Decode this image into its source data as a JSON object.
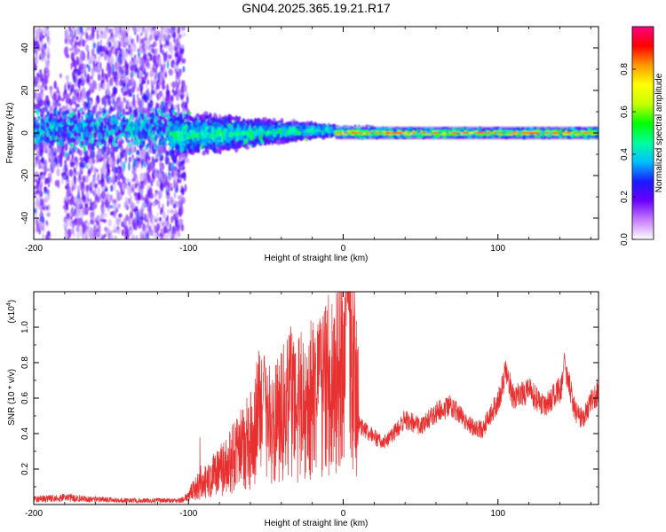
{
  "page": {
    "title": "GN04.2025.365.19.21.R17"
  },
  "chart_data": [
    {
      "type": "heatmap",
      "title": "GN04.2025.365.19.21.R17",
      "xlabel": "Height of straight line (km)",
      "ylabel": "Frequency (Hz)",
      "xlim": [
        -200,
        165
      ],
      "ylim": [
        -50,
        50
      ],
      "xticks": [
        -200,
        -100,
        0,
        100
      ],
      "yticks": [
        -40,
        -20,
        0,
        20,
        40
      ],
      "colorbar": {
        "label": "Normalized spectral amplitude",
        "range": [
          0,
          1
        ],
        "ticks": [
          "0.0",
          "0.2",
          "0.4",
          "0.6",
          "0.8"
        ],
        "colors": [
          "#ffffff",
          "#c77dff",
          "#6a00ff",
          "#1a1aff",
          "#00c0ff",
          "#00ff9c",
          "#00ff00",
          "#c8ff00",
          "#ffff00",
          "#ff9900",
          "#ff0000",
          "#ff0080"
        ]
      },
      "ridge": {
        "x": [
          -120,
          165
        ],
        "center_hz": 0
      },
      "grid": false
    },
    {
      "type": "line",
      "xlabel": "Height of straight line (km)",
      "ylabel": "SNR (10 * v/v)",
      "scale_note": "(x10",
      "scale_exponent": "4",
      "scale_close": ")",
      "xlim": [
        -200,
        165
      ],
      "ylim": [
        0,
        1.2
      ],
      "xticks": [
        -200,
        -100,
        0,
        100
      ],
      "yticks": [
        "0.2",
        "0.4",
        "0.6",
        "0.8",
        "1.0"
      ],
      "series_color": "#e83030",
      "envelope": {
        "x": [
          -200,
          -180,
          -160,
          -140,
          -120,
          -105,
          -100,
          -90,
          -80,
          -70,
          -60,
          -55,
          -50,
          -45,
          -40,
          -35,
          -30,
          -25,
          -20,
          -15,
          -10,
          -5,
          0,
          3,
          5,
          10,
          15,
          20,
          25,
          30,
          40,
          50,
          60,
          70,
          80,
          90,
          100,
          105,
          110,
          120,
          130,
          140,
          145,
          150,
          155,
          160,
          165
        ],
        "y": [
          0.04,
          0.05,
          0.04,
          0.03,
          0.03,
          0.03,
          0.06,
          0.12,
          0.18,
          0.25,
          0.33,
          0.45,
          0.42,
          0.38,
          0.45,
          0.55,
          0.45,
          0.5,
          0.52,
          0.55,
          0.58,
          0.55,
          0.65,
          0.95,
          0.7,
          0.45,
          0.42,
          0.38,
          0.35,
          0.37,
          0.48,
          0.44,
          0.52,
          0.56,
          0.45,
          0.42,
          0.58,
          0.75,
          0.6,
          0.64,
          0.55,
          0.65,
          0.72,
          0.52,
          0.48,
          0.58,
          0.64
        ]
      },
      "peaks": [
        {
          "x": -51,
          "y": 0.86
        },
        {
          "x": -15,
          "y": 0.82
        },
        {
          "x": 3,
          "y": 1.2
        },
        {
          "x": 143,
          "y": 0.86
        }
      ]
    }
  ]
}
